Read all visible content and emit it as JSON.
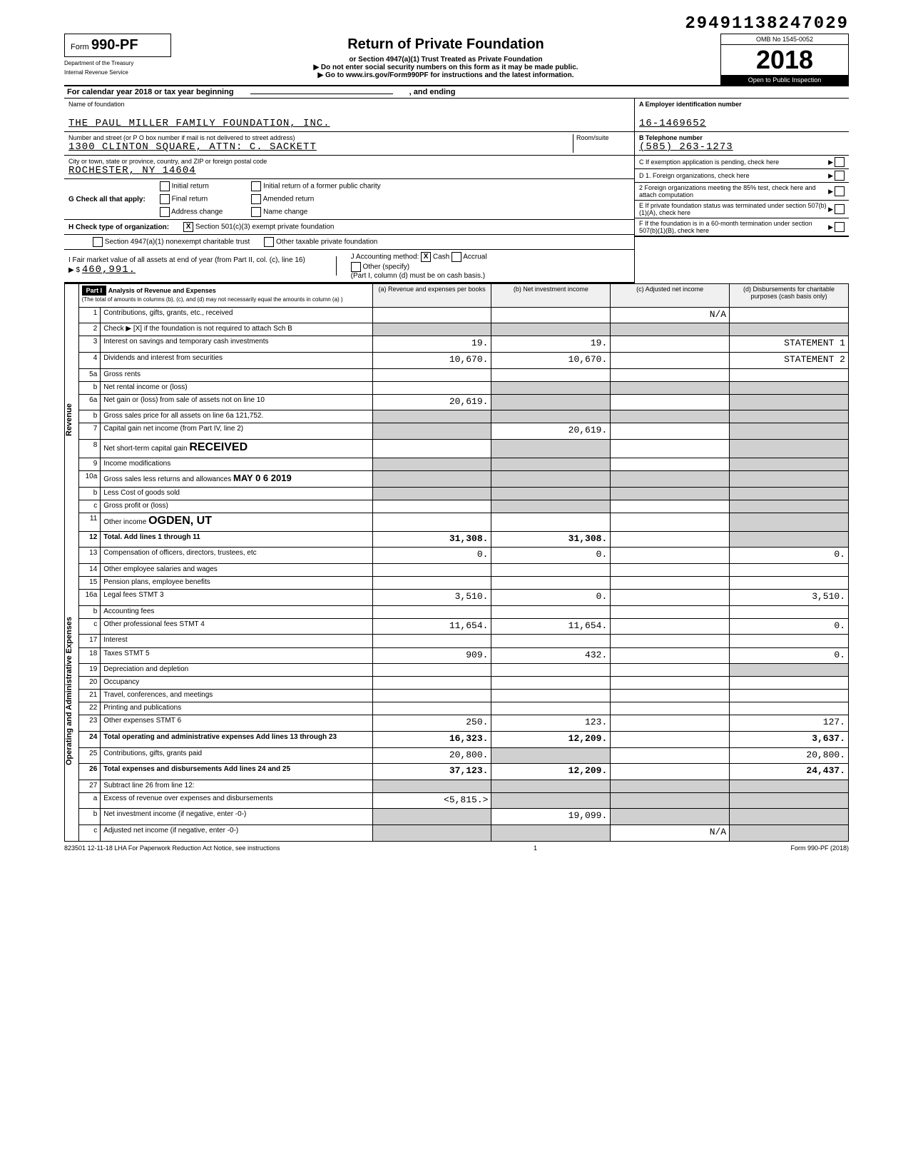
{
  "doc_id": "29491138247029",
  "form": {
    "label": "Form",
    "number": "990-PF",
    "dept1": "Department of the Treasury",
    "dept2": "Internal Revenue Service",
    "title": "Return of Private Foundation",
    "sub1": "or Section 4947(a)(1) Trust Treated as Private Foundation",
    "sub2": "Do not enter social security numbers on this form as it may be made public.",
    "sub3": "Go to www.irs.gov/Form990PF for instructions and the latest information.",
    "omb": "OMB No  1545-0052",
    "year": "2018",
    "inspect": "Open to Public Inspection"
  },
  "cal_year": "For calendar year 2018 or tax year beginning",
  "and_ending": ", and ending",
  "foundation": {
    "name_label": "Name of foundation",
    "name": "THE PAUL MILLER FAMILY FOUNDATION, INC.",
    "addr_label": "Number and street (or P O  box number if mail is not delivered to street address)",
    "addr": "1300 CLINTON SQUARE, ATTN: C. SACKETT",
    "room_label": "Room/suite",
    "city_label": "City or town, state or province, country, and ZIP or foreign postal code",
    "city": "ROCHESTER, NY  14604"
  },
  "boxA": {
    "label": "A  Employer identification number",
    "value": "16-1469652"
  },
  "boxB": {
    "label": "B  Telephone number",
    "value": "(585) 263-1273"
  },
  "boxC": "C  If exemption application is pending, check here",
  "boxD1": "D  1. Foreign organizations, check here",
  "boxD2": "2  Foreign organizations meeting the 85% test, check here and attach computation",
  "boxE": "E  If private foundation status was terminated under section 507(b)(1)(A), check here",
  "boxF": "F  If the foundation is in a 60-month termination under section 507(b)(1)(B), check here",
  "G": {
    "label": "G  Check all that apply:",
    "opts": [
      "Initial return",
      "Final return",
      "Address change",
      "Initial return of a former public charity",
      "Amended return",
      "Name change"
    ]
  },
  "H": {
    "label": "H  Check type of organization:",
    "opt1": "Section 501(c)(3) exempt private foundation",
    "opt2": "Section 4947(a)(1) nonexempt charitable trust",
    "opt3": "Other taxable private foundation"
  },
  "I": {
    "label": "I  Fair market value of all assets at end of year (from Part II, col. (c), line 16)",
    "value": "460,991."
  },
  "J": {
    "label": "J  Accounting method:",
    "cash": "Cash",
    "accrual": "Accrual",
    "other": "Other (specify)",
    "note": "(Part I, column (d) must be on cash basis.)"
  },
  "part1": {
    "title": "Part I",
    "heading": "Analysis of Revenue and Expenses",
    "sub": "(The total of amounts in columns (b), (c), and (d) may not necessarily equal the amounts in column (a) )",
    "cols": {
      "a": "(a) Revenue and expenses per books",
      "b": "(b) Net investment income",
      "c": "(c) Adjusted net income",
      "d": "(d) Disbursements for charitable purposes (cash basis only)"
    }
  },
  "sides": {
    "revenue": "Revenue",
    "expenses": "Operating and Administrative Expenses"
  },
  "rows": [
    {
      "n": "1",
      "desc": "Contributions, gifts, grants, etc., received",
      "a": "",
      "b": "",
      "c": "N/A",
      "d": ""
    },
    {
      "n": "2",
      "desc": "Check ▶ [X] if the foundation is not required to attach Sch  B",
      "a": null,
      "b": null,
      "c": null,
      "d": null
    },
    {
      "n": "3",
      "desc": "Interest on savings and temporary cash investments",
      "a": "19.",
      "b": "19.",
      "c": "",
      "d": "STATEMENT 1"
    },
    {
      "n": "4",
      "desc": "Dividends and interest from securities",
      "a": "10,670.",
      "b": "10,670.",
      "c": "",
      "d": "STATEMENT 2"
    },
    {
      "n": "5a",
      "desc": "Gross rents",
      "a": "",
      "b": "",
      "c": "",
      "d": ""
    },
    {
      "n": "b",
      "desc": "Net rental income or (loss)",
      "a": "",
      "b": null,
      "c": null,
      "d": null
    },
    {
      "n": "6a",
      "desc": "Net gain or (loss) from sale of assets not on line 10",
      "a": "20,619.",
      "b": null,
      "c": "",
      "d": null
    },
    {
      "n": "b",
      "desc": "Gross sales price for all assets on line 6a       121,752.",
      "a": null,
      "b": null,
      "c": null,
      "d": null
    },
    {
      "n": "7",
      "desc": "Capital gain net income (from Part IV, line 2)",
      "a": null,
      "b": "20,619.",
      "c": "",
      "d": null
    },
    {
      "n": "8",
      "desc": "Net short-term capital gain",
      "a": "",
      "b": null,
      "c": "",
      "d": null
    },
    {
      "n": "9",
      "desc": "Income modifications",
      "a": null,
      "b": null,
      "c": "",
      "d": null
    },
    {
      "n": "10a",
      "desc": "Gross sales less returns and allowances",
      "a": null,
      "b": null,
      "c": null,
      "d": null
    },
    {
      "n": "b",
      "desc": "Less  Cost of goods sold",
      "a": null,
      "b": null,
      "c": null,
      "d": null
    },
    {
      "n": "c",
      "desc": "Gross profit or (loss)",
      "a": "",
      "b": null,
      "c": "",
      "d": null
    },
    {
      "n": "11",
      "desc": "Other income",
      "a": "",
      "b": "",
      "c": "",
      "d": null
    },
    {
      "n": "12",
      "desc": "Total. Add lines 1 through 11",
      "a": "31,308.",
      "b": "31,308.",
      "c": "",
      "d": null
    },
    {
      "n": "13",
      "desc": "Compensation of officers, directors, trustees, etc",
      "a": "0.",
      "b": "0.",
      "c": "",
      "d": "0."
    },
    {
      "n": "14",
      "desc": "Other employee salaries and wages",
      "a": "",
      "b": "",
      "c": "",
      "d": ""
    },
    {
      "n": "15",
      "desc": "Pension plans, employee benefits",
      "a": "",
      "b": "",
      "c": "",
      "d": ""
    },
    {
      "n": "16a",
      "desc": "Legal fees                      STMT 3",
      "a": "3,510.",
      "b": "0.",
      "c": "",
      "d": "3,510."
    },
    {
      "n": "b",
      "desc": "Accounting fees",
      "a": "",
      "b": "",
      "c": "",
      "d": ""
    },
    {
      "n": "c",
      "desc": "Other professional fees        STMT 4",
      "a": "11,654.",
      "b": "11,654.",
      "c": "",
      "d": "0."
    },
    {
      "n": "17",
      "desc": "Interest",
      "a": "",
      "b": "",
      "c": "",
      "d": ""
    },
    {
      "n": "18",
      "desc": "Taxes                           STMT 5",
      "a": "909.",
      "b": "432.",
      "c": "",
      "d": "0."
    },
    {
      "n": "19",
      "desc": "Depreciation and depletion",
      "a": "",
      "b": "",
      "c": "",
      "d": null
    },
    {
      "n": "20",
      "desc": "Occupancy",
      "a": "",
      "b": "",
      "c": "",
      "d": ""
    },
    {
      "n": "21",
      "desc": "Travel, conferences, and meetings",
      "a": "",
      "b": "",
      "c": "",
      "d": ""
    },
    {
      "n": "22",
      "desc": "Printing and publications",
      "a": "",
      "b": "",
      "c": "",
      "d": ""
    },
    {
      "n": "23",
      "desc": "Other expenses                STMT 6",
      "a": "250.",
      "b": "123.",
      "c": "",
      "d": "127."
    },
    {
      "n": "24",
      "desc": "Total operating and administrative expenses  Add lines 13 through 23",
      "a": "16,323.",
      "b": "12,209.",
      "c": "",
      "d": "3,637."
    },
    {
      "n": "25",
      "desc": "Contributions, gifts, grants paid",
      "a": "20,800.",
      "b": null,
      "c": "",
      "d": "20,800."
    },
    {
      "n": "26",
      "desc": "Total expenses and disbursements Add lines 24 and 25",
      "a": "37,123.",
      "b": "12,209.",
      "c": "",
      "d": "24,437."
    },
    {
      "n": "27",
      "desc": "Subtract line 26 from line 12:",
      "a": null,
      "b": null,
      "c": null,
      "d": null
    },
    {
      "n": "a",
      "desc": "Excess of revenue over expenses and disbursements",
      "a": "<5,815.>",
      "b": null,
      "c": null,
      "d": null
    },
    {
      "n": "b",
      "desc": "Net investment income (if negative, enter -0-)",
      "a": null,
      "b": "19,099.",
      "c": null,
      "d": null
    },
    {
      "n": "c",
      "desc": "Adjusted net income (if negative, enter -0-)",
      "a": null,
      "b": null,
      "c": "N/A",
      "d": null
    }
  ],
  "stamp": {
    "received": "RECEIVED",
    "date": "MAY 0 6 2019",
    "loc": "OGDEN, UT"
  },
  "footer": {
    "left": "823501  12-11-18   LHA  For Paperwork Reduction Act Notice, see instructions",
    "page": "1",
    "right": "Form 990-PF (2018)"
  }
}
